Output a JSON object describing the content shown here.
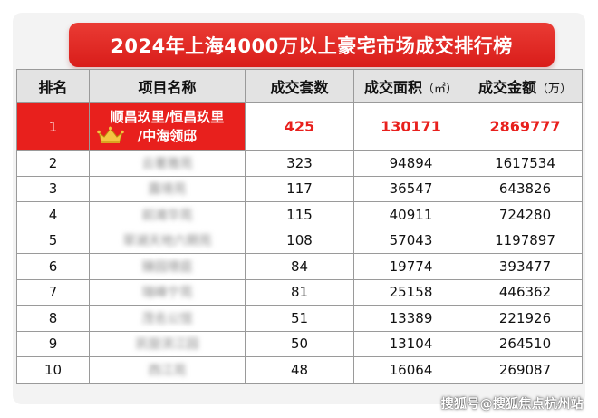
{
  "title": "2024年上海4000万以上豪宅市场成交排行榜",
  "columns": {
    "rank": "排名",
    "project": "项目名称",
    "units": "成交套数",
    "area": "成交面积",
    "area_unit": "（㎡）",
    "amount": "成交金额",
    "amount_unit": "（万）"
  },
  "rows": [
    {
      "rank": "1",
      "project": "顺昌玖里/恒昌玖里/中海领邸",
      "units": "425",
      "area": "130171",
      "amount": "2869777"
    },
    {
      "rank": "2",
      "project": "云著雅苑",
      "units": "323",
      "area": "94894",
      "amount": "1617534"
    },
    {
      "rank": "3",
      "project": "露境苑",
      "units": "117",
      "area": "36547",
      "amount": "643826"
    },
    {
      "rank": "4",
      "project": "前滩华苑",
      "units": "115",
      "area": "40911",
      "amount": "724280"
    },
    {
      "rank": "5",
      "project": "翠湖天地六期苑",
      "units": "108",
      "area": "57043",
      "amount": "1197897"
    },
    {
      "rank": "6",
      "project": "臻园璟庭",
      "units": "84",
      "area": "19774",
      "amount": "393477"
    },
    {
      "rank": "7",
      "project": "瑞峰宁苑",
      "units": "81",
      "area": "25158",
      "amount": "446362"
    },
    {
      "rank": "8",
      "project": "茂名公馆",
      "units": "51",
      "area": "13389",
      "amount": "221926"
    },
    {
      "rank": "9",
      "project": "凯旋滨江园",
      "units": "50",
      "area": "13104",
      "amount": "264510"
    },
    {
      "rank": "10",
      "project": "西江苑",
      "units": "48",
      "area": "16064",
      "amount": "269087"
    }
  ],
  "top_row_line1": "顺昌玖里/恒昌玖里",
  "top_row_line2": "/中海领邸",
  "watermark": "搜狐号@搜狐焦点杭州站",
  "colors": {
    "accent_red": "#e8201d",
    "header_gray": "#e3e3e3",
    "card_bg": "#f3f3f3"
  },
  "icons": {
    "top_badge": "crown-icon"
  }
}
